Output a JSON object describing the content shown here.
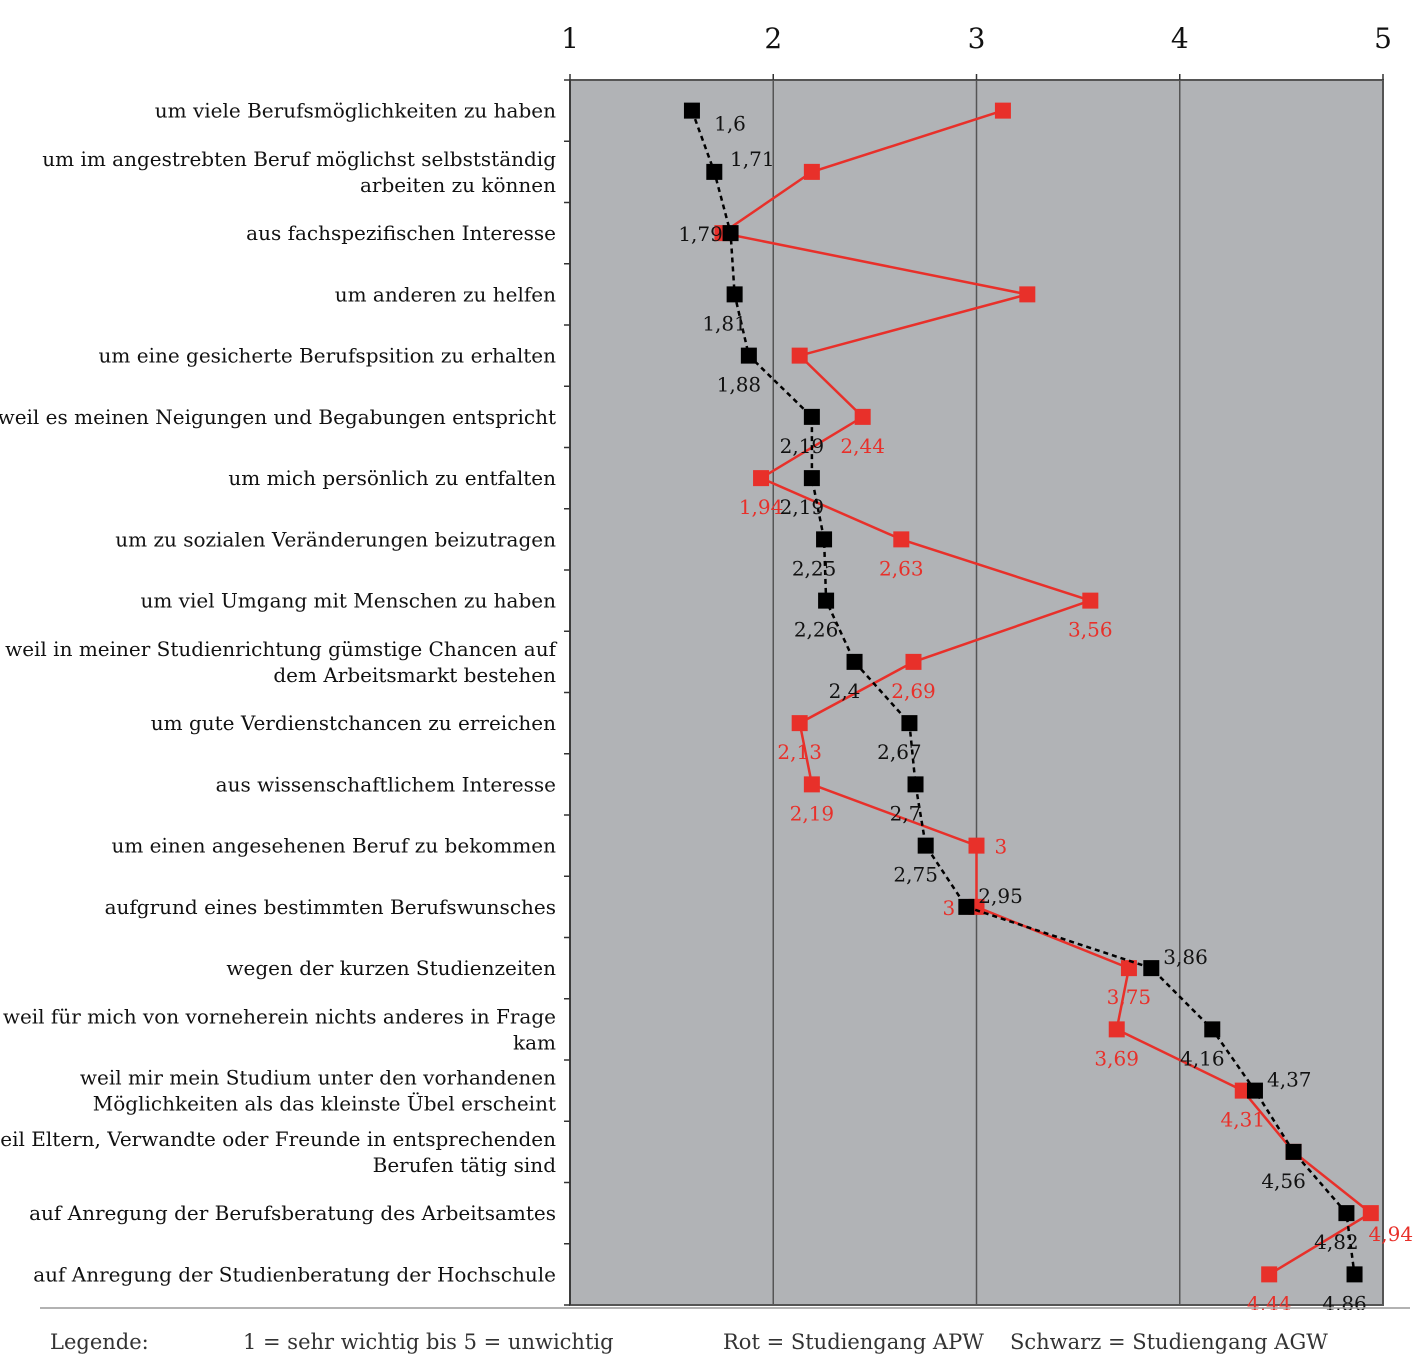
{
  "chart_data": {
    "type": "line",
    "title": "",
    "xlabel": "",
    "ylabel": "",
    "xlim": [
      1,
      5
    ],
    "x_ticks": [
      "1",
      "2",
      "3",
      "4",
      "5"
    ],
    "grid": true,
    "categories": [
      [
        "um viele Berufsmöglichkeiten zu haben"
      ],
      [
        "um im angestrebten Beruf möglichst selbstständig",
        "arbeiten zu können"
      ],
      [
        "aus fachspezifischen Interesse"
      ],
      [
        "um anderen zu helfen"
      ],
      [
        "um eine gesicherte Berufspsition zu erhalten"
      ],
      [
        "weil es meinen Neigungen und Begabungen entspricht"
      ],
      [
        "um mich persönlich zu entfalten"
      ],
      [
        "um zu sozialen Veränderungen beizutragen"
      ],
      [
        "um viel Umgang mit Menschen zu haben"
      ],
      [
        "weil in meiner Studienrichtung gümstige Chancen auf",
        "dem Arbeitsmarkt bestehen"
      ],
      [
        "um gute Verdienstchancen zu erreichen"
      ],
      [
        "aus wissenschaftlichem Interesse"
      ],
      [
        "um einen angesehenen Beruf zu bekommen"
      ],
      [
        "aufgrund eines bestimmten Berufswunsches"
      ],
      [
        "wegen der kurzen Studienzeiten"
      ],
      [
        "weil für mich von vorneherein nichts anderes in Frage",
        "kam"
      ],
      [
        "weil mir mein Studium unter den vorhandenen",
        "Möglichkeiten als das kleinste Übel erscheint"
      ],
      [
        "weil Eltern, Verwandte oder Freunde in entsprechenden",
        "Berufen tätig sind"
      ],
      [
        "auf Anregung der Berufsberatung des Arbeitsamtes"
      ],
      [
        "auf Anregung der Studienberatung der Hochschule"
      ]
    ],
    "series": [
      {
        "color": "#e8302a",
        "style": "solid",
        "values": [
          3.13,
          2.19,
          1.75,
          3.25,
          2.13,
          2.44,
          1.94,
          2.63,
          3.56,
          2.69,
          2.13,
          2.19,
          3,
          3,
          3.75,
          3.69,
          4.31,
          4.56,
          4.94,
          4.44
        ],
        "labels": [
          "",
          "",
          "",
          "",
          "",
          "2,44",
          "1,94",
          "2,63",
          "3,56",
          "2,69",
          "2,13",
          "2,19",
          "3",
          "3",
          "3,75",
          "3,69",
          "4,31",
          "",
          "4,94",
          "4,44"
        ]
      },
      {
        "color": "#000000",
        "style": "dashed",
        "values": [
          1.6,
          1.71,
          1.79,
          1.81,
          1.88,
          2.19,
          2.19,
          2.25,
          2.26,
          2.4,
          2.67,
          2.7,
          2.75,
          2.95,
          3.86,
          4.16,
          4.37,
          4.56,
          4.82,
          4.86
        ],
        "labels": [
          "1,6",
          "1,71",
          "1,79",
          "1,81",
          "1,88",
          "2,19",
          "2,19",
          "2,25",
          "2,26",
          "2,4",
          "2,67",
          "2,7",
          "2,75",
          "2,95",
          "3,86",
          "4,16",
          "4,37",
          "4,56",
          "4,82",
          "4,86"
        ]
      }
    ]
  },
  "legend": {
    "prefix": "Legende:",
    "scale": "1 = sehr wichtig bis 5 = unwichtig",
    "red": "Rot = Studiengang APW",
    "black": "Schwarz = Studiengang AGW"
  }
}
